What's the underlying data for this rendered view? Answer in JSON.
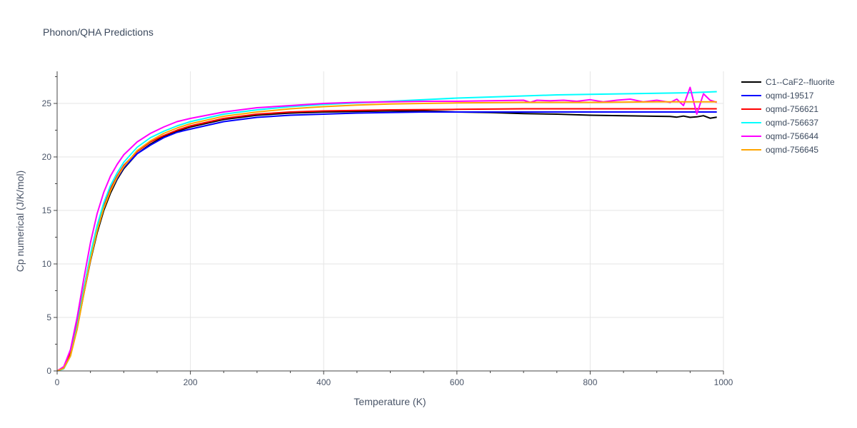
{
  "chart_data": {
    "type": "line",
    "title": "Phonon/QHA Predictions",
    "xlabel": "Temperature (K)",
    "ylabel": "Cp numerical (J/K/mol)",
    "xlim": [
      0,
      1000
    ],
    "ylim": [
      0,
      28
    ],
    "xticks": [
      0,
      200,
      400,
      600,
      800,
      1000
    ],
    "yticks": [
      0,
      5,
      10,
      15,
      20,
      25
    ],
    "grid": true,
    "legend_position": "top-right",
    "series": [
      {
        "name": "C1--CaF2--fluorite",
        "color": "#000000",
        "x": [
          0,
          10,
          20,
          30,
          40,
          50,
          60,
          70,
          80,
          90,
          100,
          120,
          140,
          160,
          180,
          200,
          250,
          300,
          350,
          400,
          450,
          500,
          550,
          600,
          650,
          700,
          750,
          800,
          850,
          900,
          920,
          930,
          940,
          950,
          960,
          970,
          980,
          990
        ],
        "values": [
          0,
          0.3,
          1.5,
          4.0,
          7.2,
          10.3,
          12.9,
          15.0,
          16.6,
          17.9,
          18.9,
          20.3,
          21.2,
          21.9,
          22.4,
          22.8,
          23.5,
          23.9,
          24.1,
          24.2,
          24.25,
          24.3,
          24.3,
          24.2,
          24.15,
          24.05,
          24.0,
          23.9,
          23.85,
          23.8,
          23.78,
          23.72,
          23.82,
          23.7,
          23.75,
          23.85,
          23.62,
          23.72
        ]
      },
      {
        "name": "oqmd-19517",
        "color": "#0000ff",
        "x": [
          0,
          10,
          20,
          30,
          40,
          50,
          60,
          70,
          80,
          90,
          100,
          120,
          140,
          160,
          180,
          200,
          250,
          300,
          350,
          400,
          450,
          500,
          550,
          600,
          700,
          800,
          900,
          990
        ],
        "values": [
          0,
          0.3,
          1.6,
          4.3,
          7.6,
          10.7,
          13.3,
          15.3,
          16.8,
          18.0,
          19.0,
          20.3,
          21.1,
          21.8,
          22.3,
          22.6,
          23.3,
          23.7,
          23.9,
          24.0,
          24.1,
          24.15,
          24.2,
          24.2,
          24.2,
          24.2,
          24.2,
          24.2
        ]
      },
      {
        "name": "oqmd-756621",
        "color": "#ff0000",
        "x": [
          0,
          10,
          20,
          30,
          40,
          50,
          60,
          70,
          80,
          90,
          100,
          120,
          140,
          160,
          180,
          200,
          250,
          300,
          350,
          400,
          450,
          500,
          600,
          700,
          800,
          900,
          990
        ],
        "values": [
          0,
          0.35,
          1.7,
          4.4,
          7.7,
          10.8,
          13.4,
          15.4,
          17.0,
          18.2,
          19.2,
          20.5,
          21.4,
          22.0,
          22.5,
          22.9,
          23.6,
          24.0,
          24.2,
          24.3,
          24.35,
          24.4,
          24.45,
          24.5,
          24.5,
          24.5,
          24.5
        ]
      },
      {
        "name": "oqmd-756637",
        "color": "#00ffff",
        "x": [
          0,
          10,
          20,
          30,
          40,
          50,
          60,
          70,
          80,
          90,
          100,
          120,
          140,
          160,
          180,
          200,
          250,
          300,
          350,
          400,
          450,
          500,
          550,
          600,
          650,
          700,
          750,
          800,
          850,
          900,
          950,
          990
        ],
        "values": [
          0,
          0.2,
          1.4,
          4.2,
          7.6,
          10.9,
          13.6,
          15.7,
          17.3,
          18.5,
          19.5,
          20.9,
          21.8,
          22.4,
          22.9,
          23.3,
          24.0,
          24.4,
          24.7,
          24.9,
          25.05,
          25.2,
          25.35,
          25.5,
          25.6,
          25.7,
          25.8,
          25.85,
          25.9,
          25.95,
          26.0,
          26.1
        ]
      },
      {
        "name": "oqmd-756644",
        "color": "#ff00ff",
        "x": [
          0,
          10,
          20,
          30,
          40,
          50,
          60,
          70,
          80,
          90,
          100,
          120,
          140,
          160,
          180,
          200,
          250,
          300,
          350,
          400,
          450,
          500,
          550,
          600,
          650,
          700,
          710,
          720,
          740,
          760,
          780,
          800,
          820,
          840,
          860,
          880,
          900,
          920,
          930,
          940,
          950,
          960,
          970,
          980,
          990
        ],
        "values": [
          0,
          0.4,
          2.0,
          5.0,
          8.6,
          12.0,
          14.7,
          16.7,
          18.2,
          19.3,
          20.2,
          21.4,
          22.2,
          22.8,
          23.3,
          23.6,
          24.2,
          24.6,
          24.8,
          25.0,
          25.1,
          25.15,
          25.2,
          25.2,
          25.25,
          25.3,
          25.1,
          25.3,
          25.25,
          25.3,
          25.2,
          25.35,
          25.15,
          25.3,
          25.4,
          25.15,
          25.3,
          25.1,
          25.4,
          24.8,
          26.5,
          24.0,
          25.9,
          25.3,
          25.1
        ]
      },
      {
        "name": "oqmd-756645",
        "color": "#ffa500",
        "x": [
          0,
          10,
          20,
          30,
          40,
          50,
          60,
          70,
          80,
          90,
          100,
          120,
          140,
          160,
          180,
          200,
          250,
          300,
          350,
          400,
          450,
          500,
          550,
          600,
          700,
          800,
          900,
          990
        ],
        "values": [
          0,
          0.25,
          1.4,
          3.9,
          7.2,
          10.4,
          13.1,
          15.2,
          16.8,
          18.1,
          19.1,
          20.6,
          21.5,
          22.2,
          22.7,
          23.1,
          23.8,
          24.2,
          24.5,
          24.7,
          24.85,
          24.95,
          25.0,
          25.05,
          25.1,
          25.1,
          25.15,
          25.15
        ]
      }
    ]
  }
}
